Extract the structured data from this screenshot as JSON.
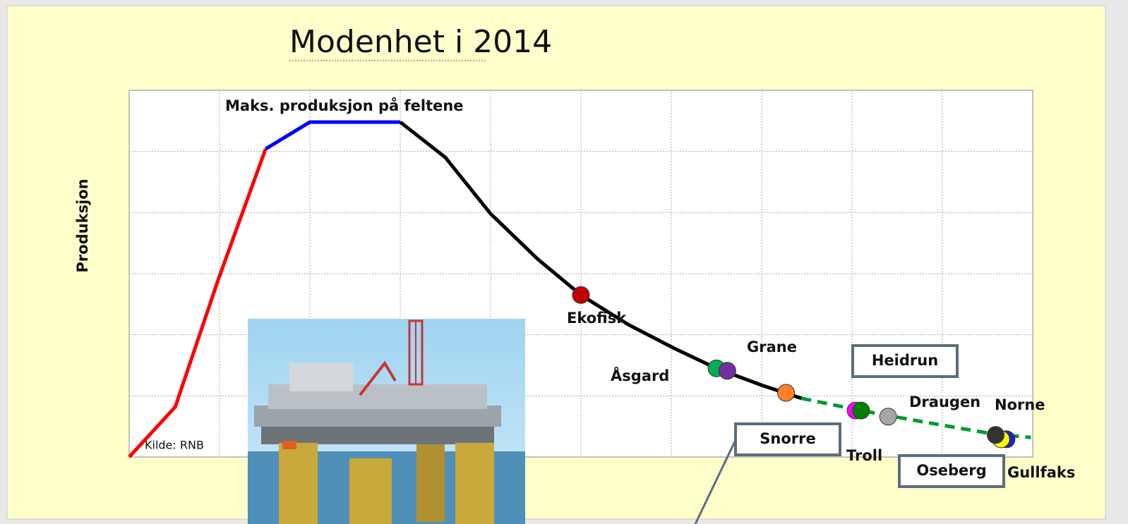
{
  "chart_data": {
    "type": "line",
    "title": "Modenhet i 2014",
    "y_label": "Produksjon",
    "annotation": "Maks. produksjon på feltene",
    "source": "Kilde:  RNB",
    "xlim": [
      0,
      10
    ],
    "ylim": [
      0,
      6
    ],
    "grid": true,
    "series": [
      {
        "color": "#ff0000",
        "x": [
          0,
          0.51,
          0.99,
          1.51
        ],
        "values": [
          0,
          0.82,
          2.92,
          5.04
        ]
      },
      {
        "color": "#0000ff",
        "x": [
          1.51,
          2.0,
          3.0
        ],
        "values": [
          5.04,
          5.48,
          5.48
        ]
      },
      {
        "color": "#000000",
        "x": [
          3.0,
          3.5,
          4.0,
          4.52,
          5.0,
          5.52,
          6.03,
          6.5,
          7.01,
          7.44
        ],
        "values": [
          5.48,
          4.9,
          3.98,
          3.24,
          2.65,
          2.17,
          1.78,
          1.45,
          1.17,
          0.96
        ]
      },
      {
        "color": "#009933",
        "dashed": true,
        "x": [
          7.44,
          8.1,
          8.73,
          9.59,
          9.98
        ],
        "values": [
          0.96,
          0.76,
          0.59,
          0.37,
          0.32
        ]
      }
    ],
    "points": [
      {
        "color": "#c00000",
        "x": 5.0,
        "y": 2.65
      },
      {
        "color": "#00b050",
        "x": 6.5,
        "y": 1.45
      },
      {
        "color": "#7030a0",
        "x": 6.62,
        "y": 1.41
      },
      {
        "color": "#ff7f27",
        "x": 7.27,
        "y": 1.05
      },
      {
        "color": "#ff00ff",
        "x": 8.04,
        "y": 0.76
      },
      {
        "color": "#008000",
        "x": 8.1,
        "y": 0.76
      },
      {
        "color": "#a6a6a6",
        "x": 8.4,
        "y": 0.66
      },
      {
        "color": "#1f1fcc",
        "x": 9.71,
        "y": 0.29
      },
      {
        "color": "#ffff00",
        "x": 9.65,
        "y": 0.29
      },
      {
        "color": "#333333",
        "x": 9.59,
        "y": 0.36
      }
    ],
    "field_labels": [
      "Ekofisk",
      "Åsgard",
      "Grane",
      "Draugen",
      "Norne",
      "Troll",
      "Gullfaks"
    ],
    "boxed_labels": [
      "Heidrun",
      "Snorre",
      "Oseberg"
    ]
  }
}
